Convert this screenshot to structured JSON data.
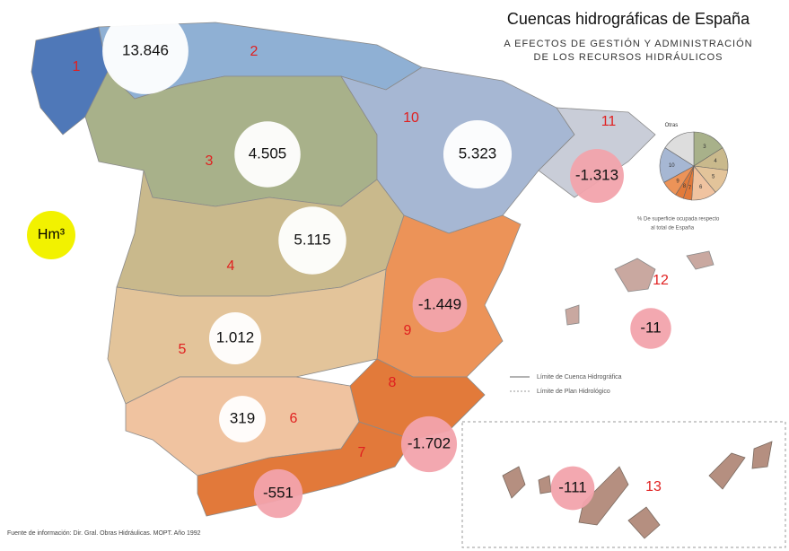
{
  "title": "Cuencas hidrográficas de España",
  "subtitle": [
    "A EFECTOS DE GESTIÓN Y ADMINISTRACIÓN",
    "DE LOS RECURSOS HIDRÁULICOS"
  ],
  "unit": "Hm³",
  "basins": [
    {
      "number": 1
    },
    {
      "number": 2,
      "balance": {
        "value": 13846,
        "label": "13.846"
      }
    },
    {
      "number": 3,
      "balance": {
        "value": 4505,
        "label": "4.505"
      }
    },
    {
      "number": 4,
      "balance": {
        "value": 5115,
        "label": "5.115"
      }
    },
    {
      "number": 5,
      "balance": {
        "value": 1012,
        "label": "1.012"
      }
    },
    {
      "number": 6,
      "balance": {
        "value": 319,
        "label": "319"
      }
    },
    {
      "number": 7,
      "balance": {
        "value": -551,
        "label": "-551"
      }
    },
    {
      "number": 8,
      "balance": {
        "value": -1702,
        "label": "-1.702"
      }
    },
    {
      "number": 9,
      "balance": {
        "value": -1449,
        "label": "-1.449"
      }
    },
    {
      "number": 10,
      "balance": {
        "value": 5323,
        "label": "5.323"
      }
    },
    {
      "number": 11,
      "balance": {
        "value": -1313,
        "label": "-1.313"
      }
    },
    {
      "number": 12,
      "balance": {
        "value": -11,
        "label": "-11"
      }
    },
    {
      "number": 13,
      "balance": {
        "value": -111,
        "label": "-111"
      }
    }
  ],
  "pie": {
    "labels": [
      "3",
      "4",
      "5",
      "6",
      "7",
      "8",
      "9",
      "10",
      "Otras"
    ],
    "values": [
      16,
      11,
      12,
      12,
      4,
      4,
      8,
      17,
      16
    ],
    "caption": [
      "% De superficie ocupada respecto",
      "al total de España"
    ]
  },
  "legend": [
    "Límite de Cuenca Hidrográfica",
    "Límite de Plan Hidrológico"
  ],
  "source": "Fuente de información: Dir. Gral. Obras Hidráulicas. MOPT. Año 1992"
}
